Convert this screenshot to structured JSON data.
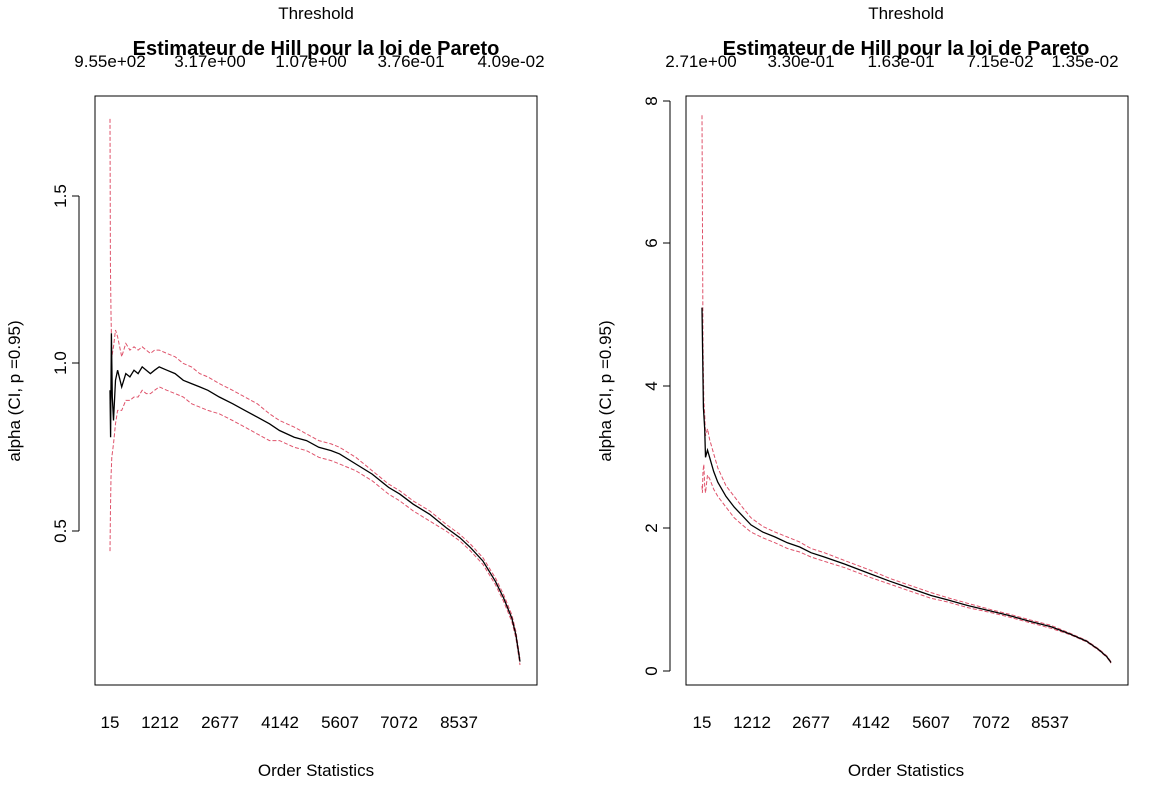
{
  "chart_data": [
    {
      "type": "line",
      "title": "Estimateur de Hill pour la loi de Pareto",
      "xlabel": "Order Statistics",
      "ylabel": "alpha (CI, p =0.95)",
      "top_axis_label": "Threshold",
      "x_ticks": [
        "15",
        "1212",
        "2677",
        "4142",
        "5607",
        "7072",
        "8537"
      ],
      "top_ticks": [
        "9.55e+02",
        "3.17e+00",
        "1.07e+00",
        "3.76e-01",
        "4.09e-02"
      ],
      "y_ticks": [
        "0.5",
        "1.0",
        "1.5"
      ],
      "xlim": [
        15,
        10000
      ],
      "ylim": [
        0.1,
        1.75
      ],
      "series": [
        {
          "color": "#000000",
          "x": [
            15,
            30,
            50,
            70,
            100,
            150,
            200,
            300,
            400,
            500,
            600,
            700,
            800,
            900,
            1000,
            1100,
            1212,
            1400,
            1600,
            1800,
            2000,
            2200,
            2400,
            2677,
            3000,
            3300,
            3600,
            3900,
            4142,
            4500,
            4800,
            5100,
            5400,
            5607,
            6000,
            6400,
            6800,
            7072,
            7400,
            7800,
            8200,
            8537,
            8800,
            9100,
            9400,
            9600,
            9800,
            9900,
            10000
          ],
          "values": [
            0.92,
            0.78,
            1.09,
            0.9,
            0.83,
            0.95,
            0.98,
            0.93,
            0.97,
            0.96,
            0.98,
            0.97,
            0.99,
            0.98,
            0.97,
            0.98,
            0.99,
            0.98,
            0.97,
            0.95,
            0.94,
            0.93,
            0.92,
            0.9,
            0.88,
            0.86,
            0.84,
            0.82,
            0.8,
            0.78,
            0.77,
            0.75,
            0.74,
            0.73,
            0.7,
            0.67,
            0.63,
            0.61,
            0.58,
            0.55,
            0.51,
            0.48,
            0.45,
            0.41,
            0.35,
            0.3,
            0.24,
            0.19,
            0.11
          ]
        },
        {
          "color": "#DF536B",
          "dashed": true,
          "x": [
            15,
            25,
            40,
            60,
            100,
            150,
            200,
            300,
            400,
            500,
            600,
            700,
            800,
            900,
            1000,
            1100,
            1212,
            1400,
            1600,
            1800,
            2000,
            2200,
            2400,
            2677,
            3000,
            3300,
            3600,
            3900,
            4142,
            4500,
            4800,
            5100,
            5400,
            5607,
            6000,
            6400,
            6800,
            7072,
            7400,
            7800,
            8200,
            8537,
            8800,
            9100,
            9400,
            9600,
            9800,
            9900,
            10000
          ],
          "values": [
            1.73,
            1.3,
            1.15,
            1.02,
            1.05,
            1.1,
            1.08,
            1.02,
            1.06,
            1.04,
            1.05,
            1.04,
            1.05,
            1.04,
            1.03,
            1.04,
            1.04,
            1.03,
            1.02,
            1.0,
            0.99,
            0.97,
            0.96,
            0.94,
            0.92,
            0.9,
            0.88,
            0.85,
            0.83,
            0.81,
            0.79,
            0.77,
            0.76,
            0.75,
            0.72,
            0.68,
            0.64,
            0.62,
            0.59,
            0.56,
            0.52,
            0.49,
            0.46,
            0.42,
            0.36,
            0.31,
            0.25,
            0.2,
            0.12
          ]
        },
        {
          "color": "#DF536B",
          "dashed": true,
          "x": [
            15,
            25,
            40,
            60,
            100,
            150,
            200,
            300,
            400,
            500,
            600,
            700,
            800,
            900,
            1000,
            1100,
            1212,
            1400,
            1600,
            1800,
            2000,
            2200,
            2400,
            2677,
            3000,
            3300,
            3600,
            3900,
            4142,
            4500,
            4800,
            5100,
            5400,
            5607,
            6000,
            6400,
            6800,
            7072,
            7400,
            7800,
            8200,
            8537,
            8800,
            9100,
            9400,
            9600,
            9800,
            9900,
            10000
          ],
          "values": [
            0.44,
            0.55,
            0.66,
            0.72,
            0.76,
            0.82,
            0.86,
            0.86,
            0.89,
            0.89,
            0.9,
            0.9,
            0.92,
            0.91,
            0.91,
            0.92,
            0.93,
            0.92,
            0.91,
            0.9,
            0.88,
            0.87,
            0.86,
            0.85,
            0.83,
            0.81,
            0.79,
            0.77,
            0.77,
            0.75,
            0.74,
            0.72,
            0.71,
            0.7,
            0.68,
            0.65,
            0.61,
            0.59,
            0.56,
            0.53,
            0.5,
            0.47,
            0.44,
            0.4,
            0.34,
            0.29,
            0.23,
            0.18,
            0.1
          ]
        }
      ]
    },
    {
      "type": "line",
      "title": "Estimateur de Hill pour la loi de Pareto",
      "xlabel": "Order Statistics",
      "ylabel": "alpha (CI, p =0.95)",
      "top_axis_label": "Threshold",
      "x_ticks": [
        "15",
        "1212",
        "2677",
        "4142",
        "5607",
        "7072",
        "8537"
      ],
      "top_ticks": [
        "2.71e+00",
        "3.30e-01",
        "1.63e-01",
        "7.15e-02",
        "1.35e-02"
      ],
      "y_ticks": [
        "0",
        "2",
        "4",
        "6",
        "8"
      ],
      "xlim": [
        15,
        10000
      ],
      "ylim": [
        0.1,
        8.0
      ],
      "series": [
        {
          "color": "#000000",
          "x": [
            15,
            30,
            50,
            80,
            100,
            150,
            200,
            300,
            400,
            600,
            800,
            1000,
            1212,
            1500,
            1800,
            2100,
            2400,
            2677,
            3000,
            3500,
            4142,
            4600,
            5000,
            5607,
            6000,
            6500,
            7072,
            7500,
            8000,
            8537,
            9000,
            9400,
            9700,
            9900,
            10000
          ],
          "values": [
            5.1,
            4.5,
            3.7,
            3.4,
            3.0,
            3.1,
            3.0,
            2.8,
            2.65,
            2.45,
            2.3,
            2.18,
            2.05,
            1.95,
            1.88,
            1.8,
            1.74,
            1.66,
            1.6,
            1.5,
            1.36,
            1.26,
            1.18,
            1.06,
            1.0,
            0.92,
            0.84,
            0.78,
            0.7,
            0.62,
            0.52,
            0.42,
            0.3,
            0.2,
            0.12
          ]
        },
        {
          "color": "#DF536B",
          "dashed": true,
          "x": [
            15,
            25,
            40,
            60,
            80,
            100,
            150,
            200,
            300,
            400,
            600,
            800,
            1000,
            1212,
            1500,
            1800,
            2100,
            2400,
            2677,
            3000,
            3500,
            4142,
            4600,
            5000,
            5607,
            6000,
            6500,
            7072,
            7500,
            8000,
            8537,
            9000,
            9400,
            9700,
            9900,
            10000
          ],
          "values": [
            7.8,
            6.5,
            4.6,
            3.8,
            3.6,
            3.3,
            3.4,
            3.25,
            3.05,
            2.85,
            2.6,
            2.45,
            2.3,
            2.15,
            2.03,
            1.95,
            1.88,
            1.81,
            1.72,
            1.66,
            1.55,
            1.41,
            1.3,
            1.22,
            1.1,
            1.03,
            0.95,
            0.86,
            0.8,
            0.72,
            0.64,
            0.53,
            0.43,
            0.31,
            0.21,
            0.13
          ]
        },
        {
          "color": "#DF536B",
          "dashed": true,
          "x": [
            15,
            25,
            40,
            60,
            80,
            100,
            150,
            200,
            300,
            400,
            600,
            800,
            1000,
            1212,
            1500,
            1800,
            2100,
            2400,
            2677,
            3000,
            3500,
            4142,
            4600,
            5000,
            5607,
            6000,
            6500,
            7072,
            7500,
            8000,
            8537,
            9000,
            9400,
            9700,
            9900,
            10000
          ],
          "values": [
            2.6,
            2.5,
            2.8,
            2.9,
            2.6,
            2.5,
            2.75,
            2.7,
            2.55,
            2.45,
            2.3,
            2.15,
            2.05,
            1.95,
            1.87,
            1.8,
            1.72,
            1.67,
            1.6,
            1.54,
            1.45,
            1.31,
            1.22,
            1.14,
            1.02,
            0.97,
            0.89,
            0.82,
            0.76,
            0.68,
            0.6,
            0.51,
            0.41,
            0.29,
            0.19,
            0.11
          ]
        }
      ]
    }
  ]
}
